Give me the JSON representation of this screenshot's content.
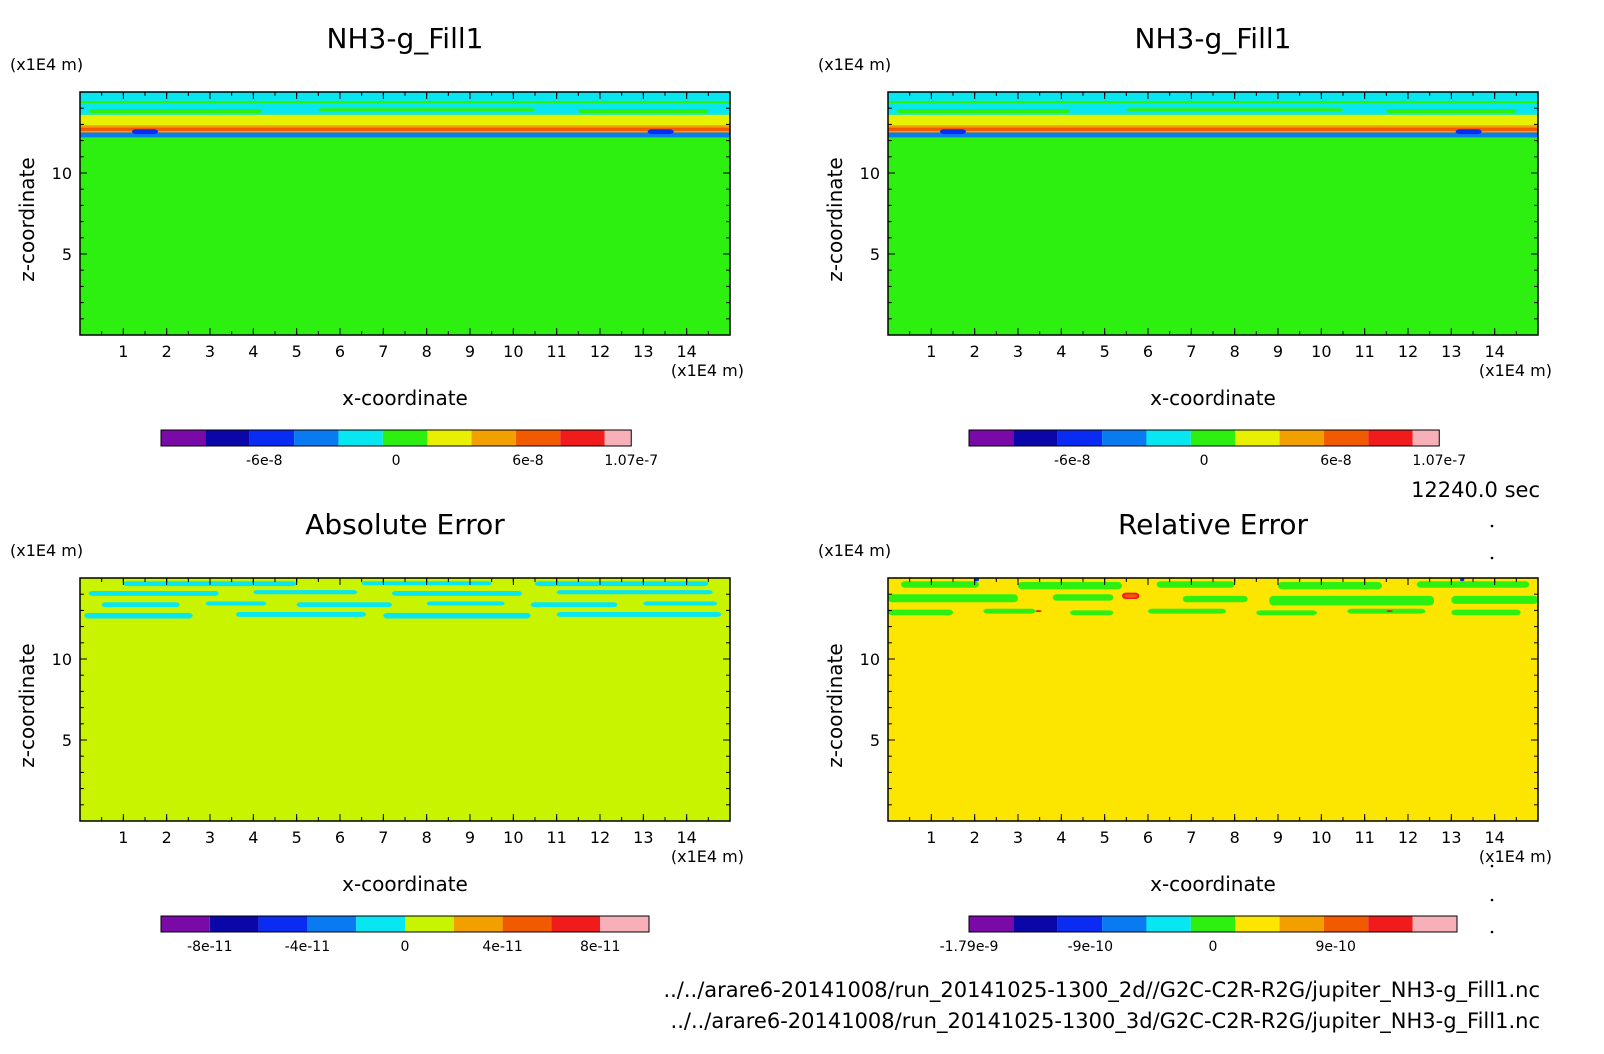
{
  "time_label": "12240.0 sec",
  "files": [
    "../../arare6-20141008/run_20141025-1300_2d//G2C-C2R-R2G/jupiter_NH3-g_Fill1.nc",
    "../../arare6-20141008/run_20141025-1300_3d/G2C-C2R-R2G/jupiter_NH3-g_Fill1.nc"
  ],
  "colors": {
    "palette": [
      "#7a0aa8",
      "#0a06a8",
      "#0a2cf2",
      "#0a7af0",
      "#08e6f2",
      "#2ef010",
      "#e8f000",
      "#f2a000",
      "#f25a00",
      "#f01c1c",
      "#f8b0b8"
    ],
    "abs_error_fill": "#c8f400",
    "rel_error_fill": "#fce600",
    "background_green": "#2ef010"
  },
  "chart_data": [
    {
      "type": "heatmap",
      "title": "NH3-g_Fill1",
      "xlabel": "x-coordinate",
      "ylabel": "z-coordinate",
      "x_unit": "(x1E4 m)",
      "y_unit": "(x1E4 m)",
      "xlim": [
        0,
        15
      ],
      "ylim": [
        0,
        15
      ],
      "xticks": [
        "1",
        "2",
        "3",
        "4",
        "5",
        "6",
        "7",
        "8",
        "9",
        "10",
        "11",
        "12",
        "13",
        "14"
      ],
      "yticks": [
        "5",
        "10"
      ],
      "colorbar": {
        "labels": [
          "-6e-8",
          "0",
          "6e-8",
          "1.07e-7"
        ],
        "label_values": [
          -6e-08,
          0,
          6e-08,
          1.07e-07
        ],
        "range": [
          -1.07e-07,
          1.07e-07
        ],
        "levels": 11
      },
      "field": {
        "background": "#2ef010",
        "layers": [
          {
            "z0": 12.5,
            "z1": 12.95,
            "color": "#f2a000"
          },
          {
            "z0": 12.6,
            "z1": 12.8,
            "color": "#f25a00"
          },
          {
            "z0": 12.2,
            "z1": 12.5,
            "color": "#0a7af0"
          },
          {
            "z0": 12.95,
            "z1": 13.6,
            "color": "#e8f000"
          },
          {
            "z0": 13.6,
            "z1": 14.1,
            "color": "#08e6f2"
          },
          {
            "z0": 14.1,
            "z1": 15,
            "color": "#08e6f2"
          }
        ],
        "patches": [
          {
            "x": 1.2,
            "z": 12.4,
            "w": 0.6,
            "h": 0.3,
            "color": "#0a2cf2"
          },
          {
            "x": 13.1,
            "z": 12.4,
            "w": 0.6,
            "h": 0.3,
            "color": "#0a2cf2"
          },
          {
            "x": 0.2,
            "z": 13.7,
            "w": 4.0,
            "h": 0.25,
            "color": "#2ef010"
          },
          {
            "x": 5.5,
            "z": 13.8,
            "w": 5.0,
            "h": 0.2,
            "color": "#2ef010"
          },
          {
            "x": 11.5,
            "z": 13.7,
            "w": 3.0,
            "h": 0.25,
            "color": "#2ef010"
          },
          {
            "x": 0.0,
            "z": 14.3,
            "w": 15.0,
            "h": 0.15,
            "color": "#2ef010"
          }
        ]
      }
    },
    {
      "type": "heatmap",
      "title": "NH3-g_Fill1",
      "xlabel": "x-coordinate",
      "ylabel": "z-coordinate",
      "x_unit": "(x1E4 m)",
      "y_unit": "(x1E4 m)",
      "xlim": [
        0,
        15
      ],
      "ylim": [
        0,
        15
      ],
      "xticks": [
        "1",
        "2",
        "3",
        "4",
        "5",
        "6",
        "7",
        "8",
        "9",
        "10",
        "11",
        "12",
        "13",
        "14"
      ],
      "yticks": [
        "5",
        "10"
      ],
      "colorbar": {
        "labels": [
          "-6e-8",
          "0",
          "6e-8",
          "1.07e-7"
        ],
        "label_values": [
          -6e-08,
          0,
          6e-08,
          1.07e-07
        ],
        "range": [
          -1.07e-07,
          1.07e-07
        ],
        "levels": 11
      },
      "field": {
        "background": "#2ef010",
        "layers": [
          {
            "z0": 12.5,
            "z1": 12.95,
            "color": "#f2a000"
          },
          {
            "z0": 12.6,
            "z1": 12.8,
            "color": "#f25a00"
          },
          {
            "z0": 12.2,
            "z1": 12.5,
            "color": "#0a7af0"
          },
          {
            "z0": 12.95,
            "z1": 13.6,
            "color": "#e8f000"
          },
          {
            "z0": 13.6,
            "z1": 14.1,
            "color": "#08e6f2"
          },
          {
            "z0": 14.1,
            "z1": 15,
            "color": "#08e6f2"
          }
        ],
        "patches": [
          {
            "x": 1.2,
            "z": 12.4,
            "w": 0.6,
            "h": 0.3,
            "color": "#0a2cf2"
          },
          {
            "x": 13.1,
            "z": 12.4,
            "w": 0.6,
            "h": 0.3,
            "color": "#0a2cf2"
          },
          {
            "x": 0.2,
            "z": 13.7,
            "w": 4.0,
            "h": 0.25,
            "color": "#2ef010"
          },
          {
            "x": 5.5,
            "z": 13.8,
            "w": 5.0,
            "h": 0.2,
            "color": "#2ef010"
          },
          {
            "x": 11.5,
            "z": 13.7,
            "w": 3.0,
            "h": 0.25,
            "color": "#2ef010"
          },
          {
            "x": 0.0,
            "z": 14.3,
            "w": 15.0,
            "h": 0.15,
            "color": "#2ef010"
          }
        ]
      }
    },
    {
      "type": "heatmap",
      "title": "Absolute Error",
      "xlabel": "x-coordinate",
      "ylabel": "z-coordinate",
      "x_unit": "(x1E4 m)",
      "y_unit": "(x1E4 m)",
      "xlim": [
        0,
        15
      ],
      "ylim": [
        0,
        15
      ],
      "xticks": [
        "1",
        "2",
        "3",
        "4",
        "5",
        "6",
        "7",
        "8",
        "9",
        "10",
        "11",
        "12",
        "13",
        "14"
      ],
      "yticks": [
        "5",
        "10"
      ],
      "colorbar": {
        "labels": [
          "-8e-11",
          "-4e-11",
          "0",
          "4e-11",
          "8e-11"
        ],
        "label_values": [
          -8e-11,
          -4e-11,
          0,
          4e-11,
          8e-11
        ],
        "range": [
          -1e-10,
          1e-10
        ],
        "levels": 10,
        "colors": [
          "#7a0aa8",
          "#0a06a8",
          "#0a2cf2",
          "#0a7af0",
          "#08e6f2",
          "#c8f400",
          "#f2a000",
          "#f25a00",
          "#f01c1c",
          "#f8b0b8"
        ]
      },
      "field": {
        "background": "#c8f400",
        "layers": [],
        "patches": [
          {
            "x": 0.1,
            "z": 12.5,
            "w": 2.5,
            "h": 0.35,
            "color": "#08e6f2"
          },
          {
            "x": 3.6,
            "z": 12.6,
            "w": 3.0,
            "h": 0.3,
            "color": "#08e6f2"
          },
          {
            "x": 7.0,
            "z": 12.5,
            "w": 3.4,
            "h": 0.35,
            "color": "#08e6f2"
          },
          {
            "x": 11.0,
            "z": 12.6,
            "w": 3.8,
            "h": 0.3,
            "color": "#08e6f2"
          },
          {
            "x": 0.5,
            "z": 13.2,
            "w": 1.8,
            "h": 0.3,
            "color": "#08e6f2"
          },
          {
            "x": 2.9,
            "z": 13.3,
            "w": 1.4,
            "h": 0.25,
            "color": "#08e6f2"
          },
          {
            "x": 5.0,
            "z": 13.2,
            "w": 2.2,
            "h": 0.3,
            "color": "#08e6f2"
          },
          {
            "x": 8.0,
            "z": 13.3,
            "w": 1.8,
            "h": 0.25,
            "color": "#08e6f2"
          },
          {
            "x": 10.4,
            "z": 13.2,
            "w": 2.0,
            "h": 0.3,
            "color": "#08e6f2"
          },
          {
            "x": 13.0,
            "z": 13.3,
            "w": 1.7,
            "h": 0.25,
            "color": "#08e6f2"
          },
          {
            "x": 0.2,
            "z": 13.9,
            "w": 3.0,
            "h": 0.3,
            "color": "#08e6f2"
          },
          {
            "x": 4.0,
            "z": 14.0,
            "w": 2.4,
            "h": 0.25,
            "color": "#08e6f2"
          },
          {
            "x": 7.2,
            "z": 13.9,
            "w": 3.0,
            "h": 0.3,
            "color": "#08e6f2"
          },
          {
            "x": 11.0,
            "z": 14.0,
            "w": 3.6,
            "h": 0.25,
            "color": "#08e6f2"
          },
          {
            "x": 1.0,
            "z": 14.5,
            "w": 4.0,
            "h": 0.3,
            "color": "#08e6f2"
          },
          {
            "x": 6.5,
            "z": 14.55,
            "w": 3.0,
            "h": 0.25,
            "color": "#08e6f2"
          },
          {
            "x": 10.5,
            "z": 14.5,
            "w": 4.0,
            "h": 0.3,
            "color": "#08e6f2"
          }
        ]
      }
    },
    {
      "type": "heatmap",
      "title": "Relative Error",
      "xlabel": "x-coordinate",
      "ylabel": "z-coordinate",
      "x_unit": "(x1E4 m)",
      "y_unit": "(x1E4 m)",
      "xlim": [
        0,
        15
      ],
      "ylim": [
        0,
        15
      ],
      "xticks": [
        "1",
        "2",
        "3",
        "4",
        "5",
        "6",
        "7",
        "8",
        "9",
        "10",
        "11",
        "12",
        "13",
        "14"
      ],
      "yticks": [
        "5",
        "10"
      ],
      "colorbar": {
        "labels": [
          "-1.79e-9",
          "-9e-10",
          "0",
          "9e-10"
        ],
        "label_values": [
          -1.79e-09,
          -9e-10,
          0,
          9e-10
        ],
        "range": [
          -1.79e-09,
          1.79e-09
        ],
        "levels": 11,
        "colors": [
          "#7a0aa8",
          "#0a06a8",
          "#0a2cf2",
          "#0a7af0",
          "#08e6f2",
          "#2ef010",
          "#fce600",
          "#f2a000",
          "#f25a00",
          "#f01c1c",
          "#f8b0b8"
        ]
      },
      "field": {
        "background": "#fce600",
        "layers": [],
        "patches": [
          {
            "x": 0.0,
            "z": 12.7,
            "w": 1.5,
            "h": 0.35,
            "color": "#2ef010"
          },
          {
            "x": 2.2,
            "z": 12.8,
            "w": 1.2,
            "h": 0.3,
            "color": "#2ef010"
          },
          {
            "x": 4.2,
            "z": 12.7,
            "w": 1.0,
            "h": 0.3,
            "color": "#2ef010"
          },
          {
            "x": 6.0,
            "z": 12.8,
            "w": 1.8,
            "h": 0.3,
            "color": "#2ef010"
          },
          {
            "x": 8.5,
            "z": 12.7,
            "w": 1.4,
            "h": 0.3,
            "color": "#2ef010"
          },
          {
            "x": 10.6,
            "z": 12.8,
            "w": 1.8,
            "h": 0.3,
            "color": "#2ef010"
          },
          {
            "x": 13.0,
            "z": 12.7,
            "w": 1.6,
            "h": 0.35,
            "color": "#2ef010"
          },
          {
            "x": 0.0,
            "z": 13.5,
            "w": 3.0,
            "h": 0.5,
            "color": "#2ef010"
          },
          {
            "x": 3.8,
            "z": 13.6,
            "w": 1.4,
            "h": 0.4,
            "color": "#2ef010"
          },
          {
            "x": 6.8,
            "z": 13.5,
            "w": 1.5,
            "h": 0.4,
            "color": "#2ef010"
          },
          {
            "x": 8.8,
            "z": 13.3,
            "w": 3.8,
            "h": 0.6,
            "color": "#2ef010"
          },
          {
            "x": 13.0,
            "z": 13.4,
            "w": 2.0,
            "h": 0.5,
            "color": "#2ef010"
          },
          {
            "x": 0.3,
            "z": 14.4,
            "w": 1.8,
            "h": 0.4,
            "color": "#2ef010"
          },
          {
            "x": 3.0,
            "z": 14.3,
            "w": 2.4,
            "h": 0.45,
            "color": "#2ef010"
          },
          {
            "x": 6.2,
            "z": 14.4,
            "w": 1.8,
            "h": 0.4,
            "color": "#2ef010"
          },
          {
            "x": 9.0,
            "z": 14.3,
            "w": 2.4,
            "h": 0.45,
            "color": "#2ef010"
          },
          {
            "x": 12.2,
            "z": 14.4,
            "w": 2.6,
            "h": 0.4,
            "color": "#2ef010"
          },
          {
            "x": 5.4,
            "z": 13.7,
            "w": 0.4,
            "h": 0.4,
            "color": "#f01c1c"
          },
          {
            "x": 5.45,
            "z": 13.78,
            "w": 0.3,
            "h": 0.22,
            "color": "#f25a00"
          },
          {
            "x": 3.4,
            "z": 12.9,
            "w": 0.15,
            "h": 0.12,
            "color": "#f01c1c"
          },
          {
            "x": 11.5,
            "z": 12.9,
            "w": 0.15,
            "h": 0.12,
            "color": "#f01c1c"
          },
          {
            "x": 2.0,
            "z": 14.8,
            "w": 0.1,
            "h": 0.2,
            "color": "#0a2cf2"
          },
          {
            "x": 13.2,
            "z": 14.8,
            "w": 0.1,
            "h": 0.2,
            "color": "#0a2cf2"
          }
        ]
      }
    }
  ]
}
